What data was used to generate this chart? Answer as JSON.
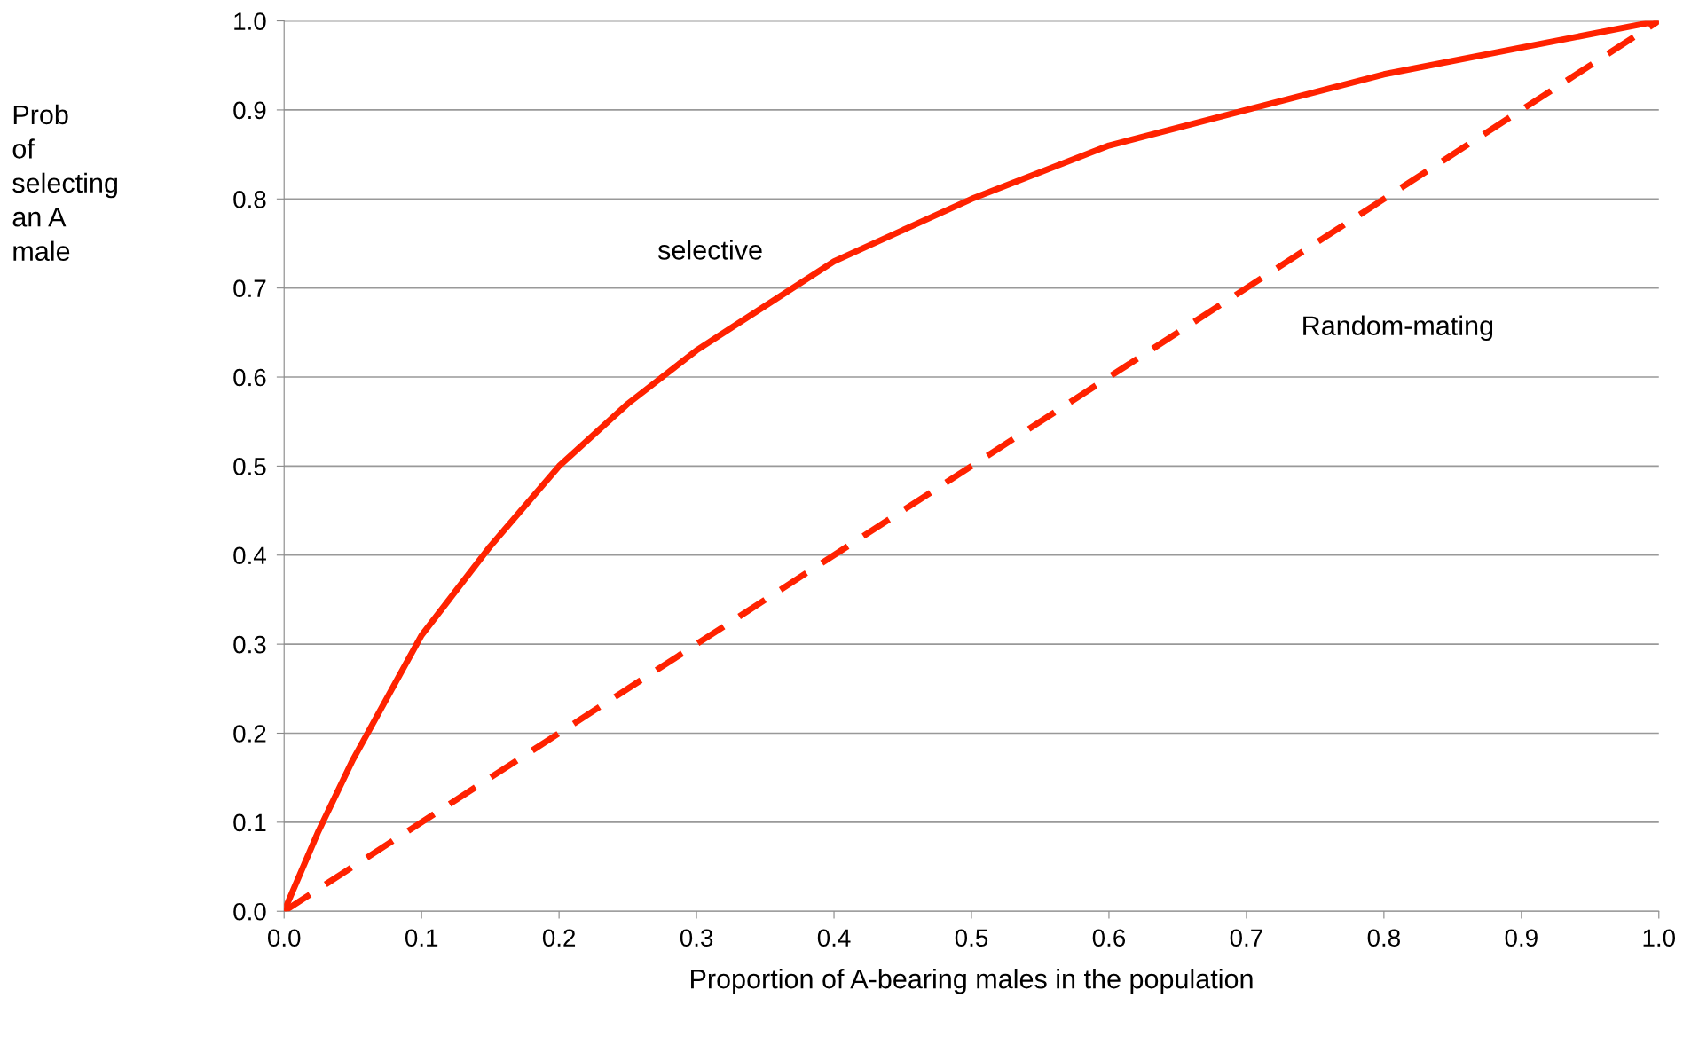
{
  "chart_data": {
    "type": "line",
    "xlabel": "Proportion of A-bearing males in the population",
    "ylabel": "Prob\nof\nselecting\nan A\nmale",
    "series": [
      {
        "name": "selective",
        "color": "#ff2200",
        "line_style": "solid",
        "x": [
          0,
          0.025,
          0.05,
          0.075,
          0.1,
          0.15,
          0.2,
          0.25,
          0.3,
          0.35,
          0.4,
          0.5,
          0.6,
          0.7,
          0.8,
          0.9,
          1.0
        ],
        "values": [
          0,
          0.09,
          0.17,
          0.24,
          0.31,
          0.41,
          0.5,
          0.57,
          0.63,
          0.68,
          0.73,
          0.8,
          0.86,
          0.9,
          0.94,
          0.97,
          1.0
        ]
      },
      {
        "name": "Random-mating",
        "color": "#ff2200",
        "line_style": "dashed",
        "x": [
          0,
          1.0
        ],
        "values": [
          0,
          1.0
        ]
      }
    ],
    "xlim": [
      0,
      1.0
    ],
    "ylim": [
      0,
      1.0
    ],
    "xticks": [
      {
        "value": 0,
        "label": "0.0"
      },
      0.1,
      0.2,
      0.3,
      0.4,
      0.5,
      0.6,
      0.7,
      0.8,
      0.9,
      {
        "value": 1,
        "label": "1.0"
      }
    ],
    "yticks": [
      {
        "value": 0,
        "label": "0.0"
      },
      0.1,
      0.2,
      0.3,
      0.4,
      0.5,
      0.6,
      0.7,
      0.8,
      0.9,
      {
        "value": 1,
        "label": "1.0"
      }
    ],
    "grid": "y",
    "legend": false,
    "marker": "none"
  }
}
